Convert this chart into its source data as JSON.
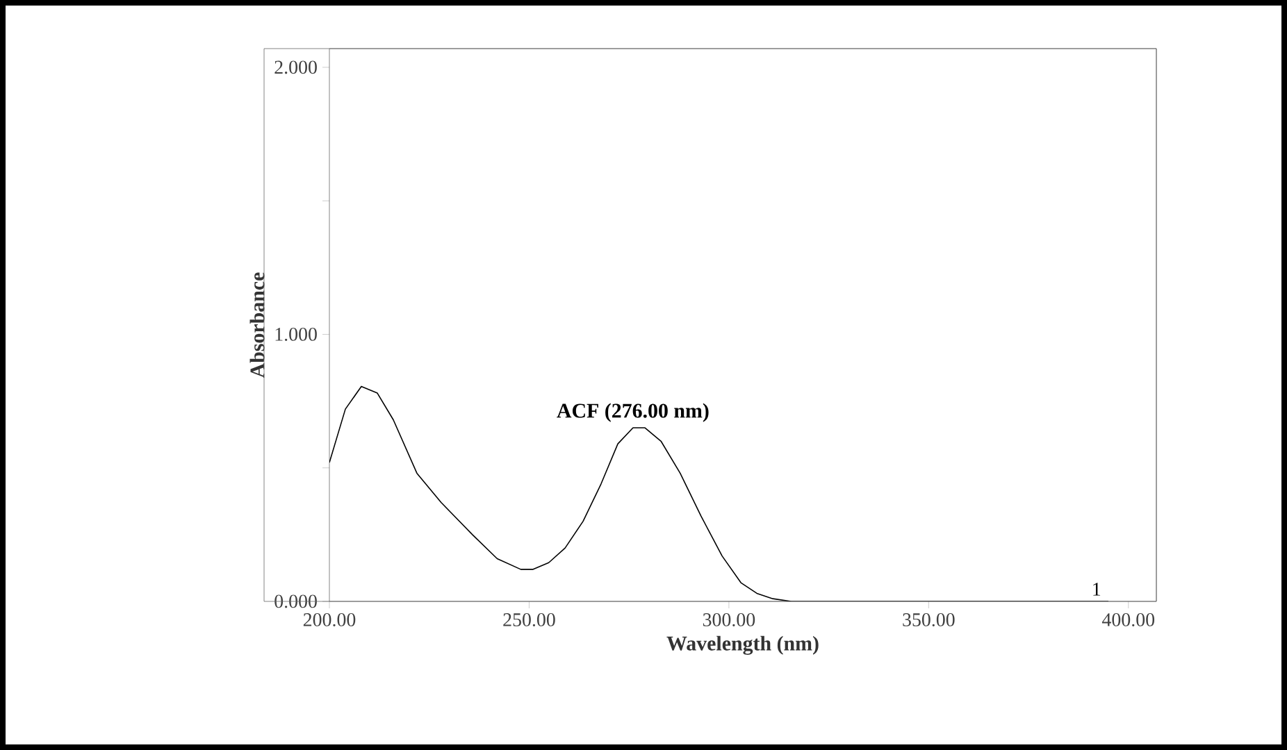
{
  "chart_data": {
    "type": "line",
    "xlabel": "Wavelength (nm)",
    "ylabel": "Absorbance",
    "x": [
      200,
      204,
      208,
      212,
      216,
      221.9,
      228,
      235.8,
      242,
      247.9,
      251,
      254.9,
      259,
      263.5,
      268,
      272.2,
      276,
      279,
      283,
      287.8,
      293,
      298.3,
      303,
      307,
      311,
      315.6,
      330,
      350,
      370,
      395
    ],
    "series": [
      {
        "color": "#000000",
        "values": [
          0.52,
          0.72,
          0.805,
          0.78,
          0.68,
          0.48,
          0.37,
          0.25,
          0.16,
          0.12,
          0.12,
          0.145,
          0.2,
          0.3,
          0.44,
          0.59,
          0.65,
          0.65,
          0.6,
          0.48,
          0.32,
          0.17,
          0.07,
          0.03,
          0.01,
          0,
          0,
          0,
          0,
          0
        ]
      }
    ],
    "xlim": [
      200,
      407
    ],
    "ylim": [
      0,
      2.07
    ],
    "xticks": [
      {
        "value": 200,
        "label": "200.00"
      },
      {
        "value": 250,
        "label": "250.00"
      },
      {
        "value": 300,
        "label": "300.00"
      },
      {
        "value": 350,
        "label": "350.00"
      },
      {
        "value": 400,
        "label": "400.00"
      }
    ],
    "yticks": [
      {
        "value": 0,
        "label": "0.000"
      },
      {
        "value": 0.5,
        "label": null
      },
      {
        "value": 1,
        "label": "1.000"
      },
      {
        "value": 1.5,
        "label": null
      },
      {
        "value": 2,
        "label": "2.000"
      }
    ],
    "annotations": [
      {
        "text": "ACF (276.00 nm)",
        "x": 276,
        "y": 0.65
      },
      {
        "text": "1",
        "x": 392,
        "y": 0
      }
    ],
    "grid": false,
    "marker": "none",
    "line_style": "solid"
  }
}
